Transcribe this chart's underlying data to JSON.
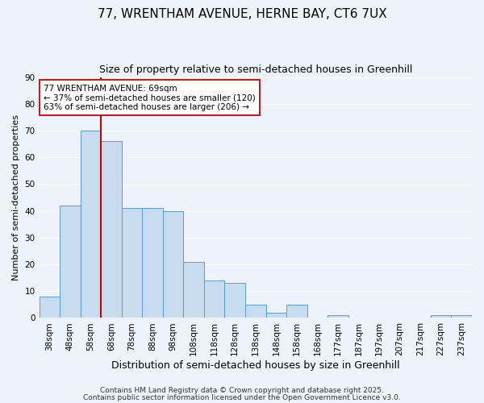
{
  "title1": "77, WRENTHAM AVENUE, HERNE BAY, CT6 7UX",
  "title2": "Size of property relative to semi-detached houses in Greenhill",
  "xlabel": "Distribution of semi-detached houses by size in Greenhill",
  "ylabel": "Number of semi-detached properties",
  "bar_labels": [
    "38sqm",
    "48sqm",
    "58sqm",
    "68sqm",
    "78sqm",
    "88sqm",
    "98sqm",
    "108sqm",
    "118sqm",
    "128sqm",
    "138sqm",
    "148sqm",
    "158sqm",
    "168sqm",
    "177sqm",
    "187sqm",
    "197sqm",
    "207sqm",
    "217sqm",
    "227sqm",
    "237sqm"
  ],
  "bar_values": [
    8,
    42,
    70,
    66,
    41,
    41,
    40,
    21,
    14,
    13,
    5,
    2,
    5,
    0,
    1,
    0,
    0,
    0,
    0,
    1,
    1
  ],
  "bar_color": "#c8dcf0",
  "bar_edge_color": "#5b9bd5",
  "highlight_index": 2,
  "highlight_line_color": "#cc0000",
  "annotation_box_text": "77 WRENTHAM AVENUE: 69sqm\n← 37% of semi-detached houses are smaller (120)\n63% of semi-detached houses are larger (206) →",
  "annotation_box_edge_color": "#cc0000",
  "annotation_box_bg": "#ffffff",
  "ylim": [
    0,
    90
  ],
  "yticks": [
    0,
    10,
    20,
    30,
    40,
    50,
    60,
    70,
    80,
    90
  ],
  "footnote1": "Contains HM Land Registry data © Crown copyright and database right 2025.",
  "footnote2": "Contains public sector information licensed under the Open Government Licence v3.0.",
  "background_color": "#eef2fb",
  "grid_color": "#ffffff",
  "title1_fontsize": 11,
  "title2_fontsize": 9,
  "xlabel_fontsize": 9,
  "ylabel_fontsize": 8,
  "tick_fontsize": 7.5,
  "annotation_fontsize": 7.5,
  "footnote_fontsize": 6.5
}
